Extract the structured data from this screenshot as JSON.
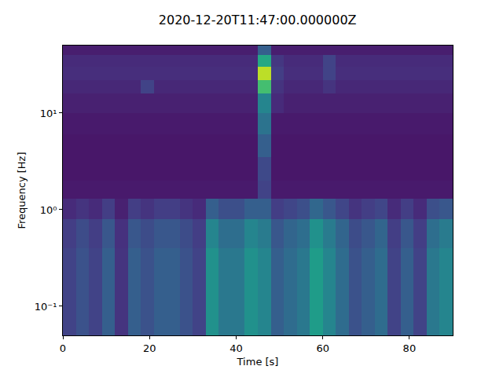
{
  "chart_data": {
    "type": "heatmap",
    "title": "2020-12-20T11:47:00.000000Z",
    "xlabel": "Time [s]",
    "ylabel": "Frequency [Hz]",
    "log": "y",
    "grid": false,
    "color": "viridis",
    "xlim": [
      0,
      90
    ],
    "ylim": [
      0.05,
      50
    ],
    "xticks": [
      0,
      20,
      40,
      60,
      80
    ],
    "yticks": [
      {
        "value": 0.1,
        "label": "10⁻¹"
      },
      {
        "value": 1,
        "label": "10⁰"
      },
      {
        "value": 10,
        "label": "10¹"
      }
    ],
    "zlim": [
      0,
      1
    ],
    "x_bins": [
      0,
      3,
      6,
      9,
      12,
      15,
      18,
      21,
      24,
      27,
      30,
      33,
      36,
      39,
      42,
      45,
      48,
      51,
      54,
      57,
      60,
      63,
      66,
      69,
      72,
      75,
      78,
      81,
      84,
      87,
      90
    ],
    "y_bins": [
      0.05,
      0.15,
      0.4,
      0.8,
      1.3,
      2,
      3.5,
      6,
      10,
      16,
      22,
      30,
      40,
      50
    ],
    "cells": [
      [
        0.2,
        0.25,
        0.2,
        0.3,
        0.15,
        0.3,
        0.25,
        0.3,
        0.3,
        0.25,
        0.2,
        0.5,
        0.4,
        0.4,
        0.5,
        0.45,
        0.3,
        0.35,
        0.4,
        0.55,
        0.45,
        0.35,
        0.25,
        0.3,
        0.35,
        0.2,
        0.3,
        0.2,
        0.4,
        0.45
      ],
      [
        0.2,
        0.25,
        0.2,
        0.3,
        0.15,
        0.3,
        0.25,
        0.3,
        0.3,
        0.25,
        0.2,
        0.5,
        0.4,
        0.4,
        0.5,
        0.45,
        0.3,
        0.35,
        0.4,
        0.55,
        0.45,
        0.35,
        0.25,
        0.3,
        0.35,
        0.2,
        0.3,
        0.2,
        0.4,
        0.45
      ],
      [
        0.18,
        0.23,
        0.18,
        0.27,
        0.14,
        0.27,
        0.23,
        0.27,
        0.27,
        0.23,
        0.18,
        0.45,
        0.36,
        0.36,
        0.45,
        0.41,
        0.27,
        0.32,
        0.36,
        0.5,
        0.41,
        0.32,
        0.23,
        0.27,
        0.32,
        0.18,
        0.27,
        0.18,
        0.36,
        0.41
      ],
      [
        0.12,
        0.15,
        0.12,
        0.18,
        0.09,
        0.18,
        0.15,
        0.18,
        0.18,
        0.15,
        0.12,
        0.3,
        0.24,
        0.24,
        0.3,
        0.3,
        0.18,
        0.21,
        0.24,
        0.33,
        0.27,
        0.21,
        0.15,
        0.18,
        0.21,
        0.12,
        0.18,
        0.12,
        0.24,
        0.27
      ],
      [
        0.07,
        0.07,
        0.07,
        0.07,
        0.07,
        0.07,
        0.07,
        0.07,
        0.07,
        0.07,
        0.07,
        0.07,
        0.07,
        0.07,
        0.07,
        0.2,
        0.07,
        0.07,
        0.07,
        0.07,
        0.07,
        0.07,
        0.07,
        0.07,
        0.07,
        0.07,
        0.07,
        0.07,
        0.07,
        0.07
      ],
      [
        0.06,
        0.06,
        0.06,
        0.06,
        0.06,
        0.06,
        0.06,
        0.06,
        0.06,
        0.06,
        0.06,
        0.06,
        0.06,
        0.06,
        0.06,
        0.22,
        0.06,
        0.06,
        0.06,
        0.06,
        0.06,
        0.06,
        0.06,
        0.06,
        0.06,
        0.06,
        0.06,
        0.06,
        0.06,
        0.06
      ],
      [
        0.06,
        0.06,
        0.06,
        0.06,
        0.06,
        0.06,
        0.06,
        0.06,
        0.06,
        0.06,
        0.06,
        0.06,
        0.06,
        0.06,
        0.06,
        0.3,
        0.06,
        0.06,
        0.06,
        0.06,
        0.06,
        0.06,
        0.06,
        0.06,
        0.06,
        0.06,
        0.06,
        0.06,
        0.06,
        0.06
      ],
      [
        0.07,
        0.07,
        0.07,
        0.07,
        0.07,
        0.07,
        0.07,
        0.07,
        0.07,
        0.07,
        0.07,
        0.07,
        0.07,
        0.07,
        0.07,
        0.38,
        0.07,
        0.07,
        0.07,
        0.07,
        0.07,
        0.07,
        0.07,
        0.07,
        0.07,
        0.07,
        0.07,
        0.07,
        0.07,
        0.07
      ],
      [
        0.09,
        0.09,
        0.09,
        0.09,
        0.09,
        0.09,
        0.09,
        0.09,
        0.09,
        0.09,
        0.09,
        0.09,
        0.09,
        0.09,
        0.09,
        0.45,
        0.12,
        0.09,
        0.09,
        0.09,
        0.09,
        0.09,
        0.09,
        0.09,
        0.09,
        0.09,
        0.09,
        0.09,
        0.09,
        0.09
      ],
      [
        0.11,
        0.11,
        0.11,
        0.11,
        0.11,
        0.11,
        0.2,
        0.11,
        0.11,
        0.11,
        0.11,
        0.11,
        0.11,
        0.11,
        0.11,
        0.7,
        0.15,
        0.11,
        0.11,
        0.11,
        0.15,
        0.11,
        0.11,
        0.11,
        0.11,
        0.11,
        0.11,
        0.11,
        0.11,
        0.11
      ],
      [
        0.13,
        0.13,
        0.13,
        0.13,
        0.13,
        0.13,
        0.13,
        0.13,
        0.13,
        0.13,
        0.13,
        0.13,
        0.13,
        0.13,
        0.13,
        0.9,
        0.18,
        0.13,
        0.13,
        0.13,
        0.2,
        0.13,
        0.13,
        0.13,
        0.13,
        0.13,
        0.13,
        0.13,
        0.13,
        0.13
      ],
      [
        0.12,
        0.12,
        0.12,
        0.12,
        0.12,
        0.12,
        0.12,
        0.12,
        0.12,
        0.12,
        0.12,
        0.12,
        0.12,
        0.12,
        0.12,
        0.6,
        0.16,
        0.12,
        0.12,
        0.12,
        0.2,
        0.12,
        0.12,
        0.12,
        0.12,
        0.12,
        0.12,
        0.12,
        0.12,
        0.12
      ],
      [
        0.08,
        0.08,
        0.08,
        0.08,
        0.08,
        0.08,
        0.08,
        0.08,
        0.08,
        0.08,
        0.08,
        0.08,
        0.08,
        0.08,
        0.08,
        0.3,
        0.08,
        0.08,
        0.08,
        0.08,
        0.08,
        0.08,
        0.08,
        0.08,
        0.08,
        0.08,
        0.08,
        0.08,
        0.08,
        0.08
      ]
    ]
  }
}
